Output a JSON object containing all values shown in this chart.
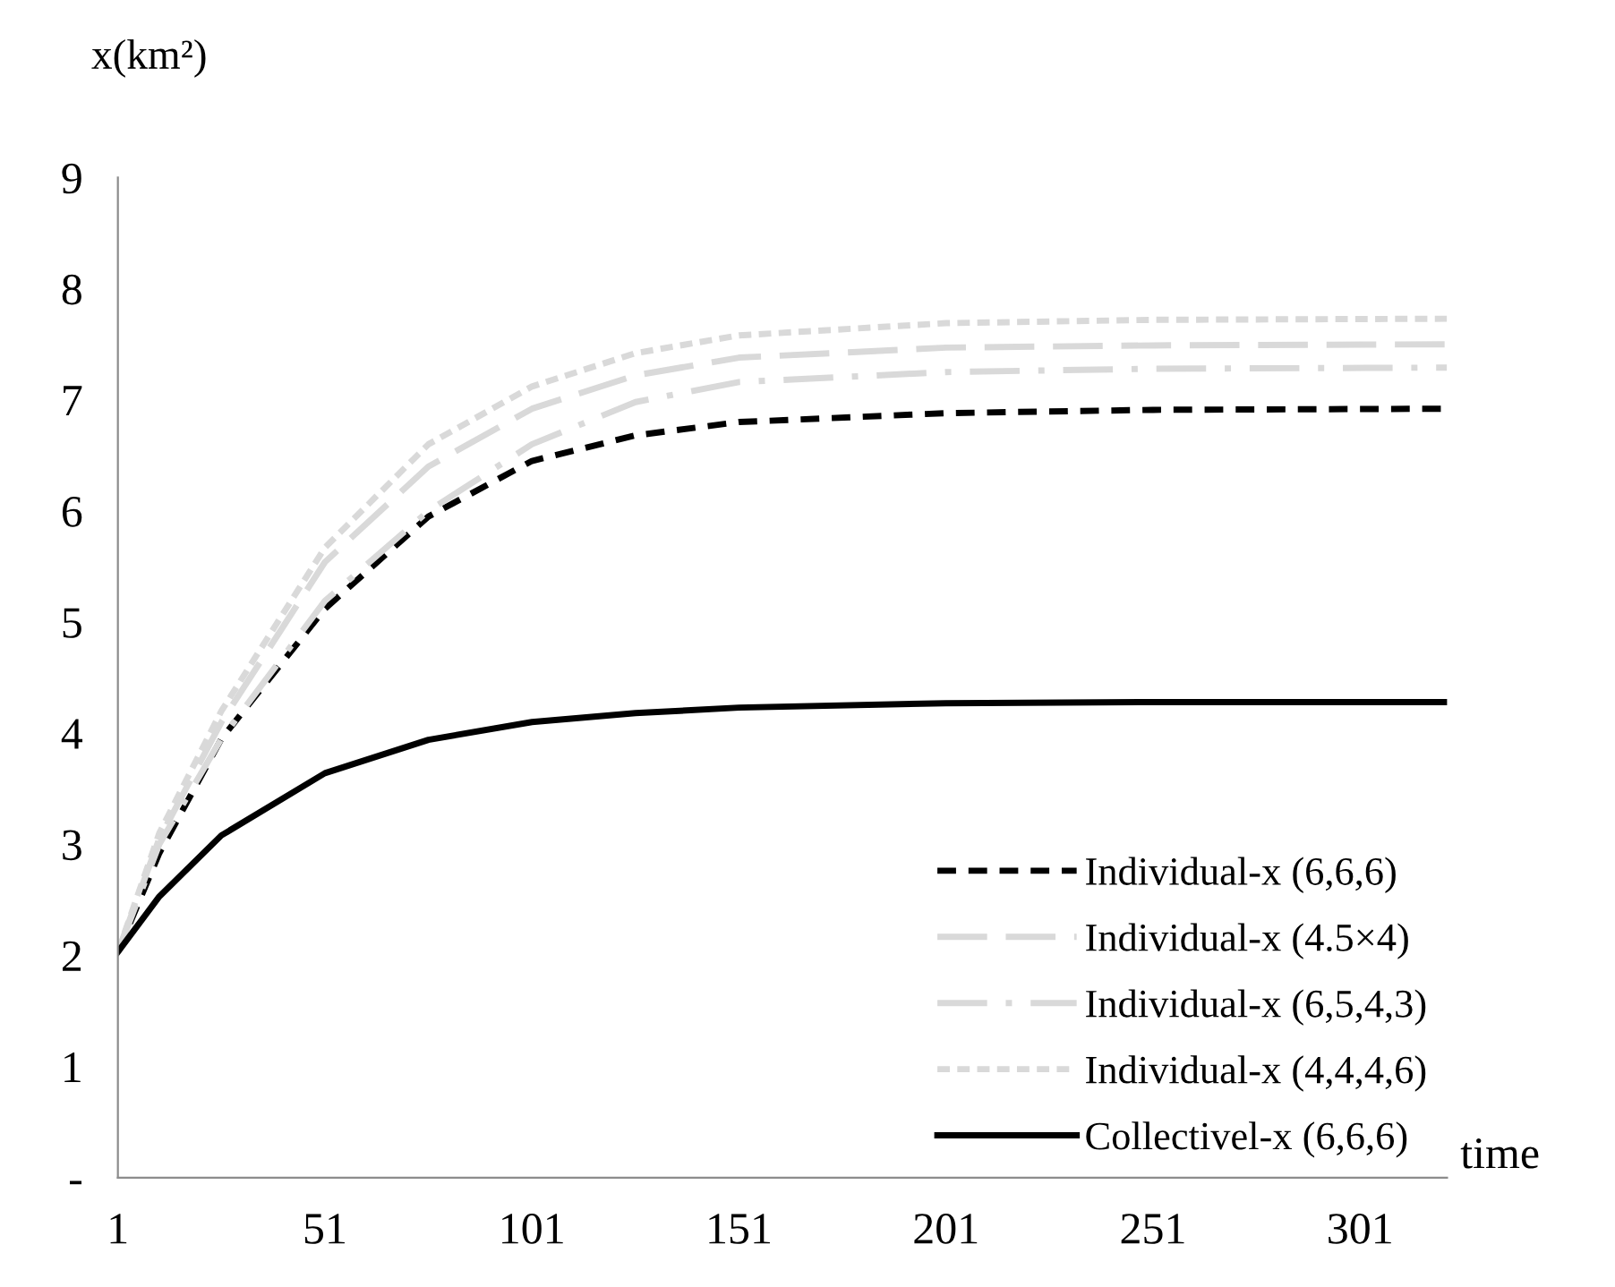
{
  "chart_data": {
    "type": "line",
    "xlabel": "time",
    "ylabel": "x(km²)",
    "xlim": [
      1,
      322
    ],
    "xticks": [
      1,
      51,
      101,
      151,
      201,
      251,
      301
    ],
    "ylim": [
      0,
      9
    ],
    "yticks": [
      {
        "value": 0,
        "label": "-"
      },
      1,
      2,
      3,
      4,
      5,
      6,
      7,
      8,
      9
    ],
    "grid": false,
    "legend": "bottom right",
    "x": [
      1,
      11,
      26,
      51,
      76,
      101,
      126,
      151,
      201,
      251,
      322
    ],
    "series": [
      {
        "name": "Individual-x (6,6,6)",
        "color": "#000000",
        "line_style": "dashed",
        "values": [
          2.03,
          2.92,
          3.95,
          5.12,
          5.95,
          6.45,
          6.68,
          6.8,
          6.88,
          6.91,
          6.92
        ]
      },
      {
        "name": "Individual-x (4.5×4)",
        "color": "#d9d9d9",
        "line_style": "longdash",
        "values": [
          2.03,
          3.05,
          4.1,
          5.54,
          6.4,
          6.92,
          7.22,
          7.38,
          7.47,
          7.49,
          7.5
        ]
      },
      {
        "name": "Individual-x (6,5,4,3)",
        "color": "#d9d9d9",
        "line_style": "dashdot",
        "values": [
          2.03,
          3.0,
          3.95,
          5.19,
          6.0,
          6.6,
          6.98,
          7.16,
          7.25,
          7.28,
          7.29
        ]
      },
      {
        "name": "Individual-x (4,4,4,6)",
        "color": "#d9d9d9",
        "line_style": "dotted",
        "values": [
          2.03,
          3.1,
          4.2,
          5.67,
          6.6,
          7.12,
          7.42,
          7.58,
          7.69,
          7.72,
          7.73
        ]
      },
      {
        "name": "Collectivel-x (6,6,6)",
        "color": "#000000",
        "line_style": "solid",
        "values": [
          2.03,
          2.53,
          3.08,
          3.64,
          3.94,
          4.1,
          4.18,
          4.23,
          4.27,
          4.28,
          4.28
        ]
      }
    ]
  }
}
